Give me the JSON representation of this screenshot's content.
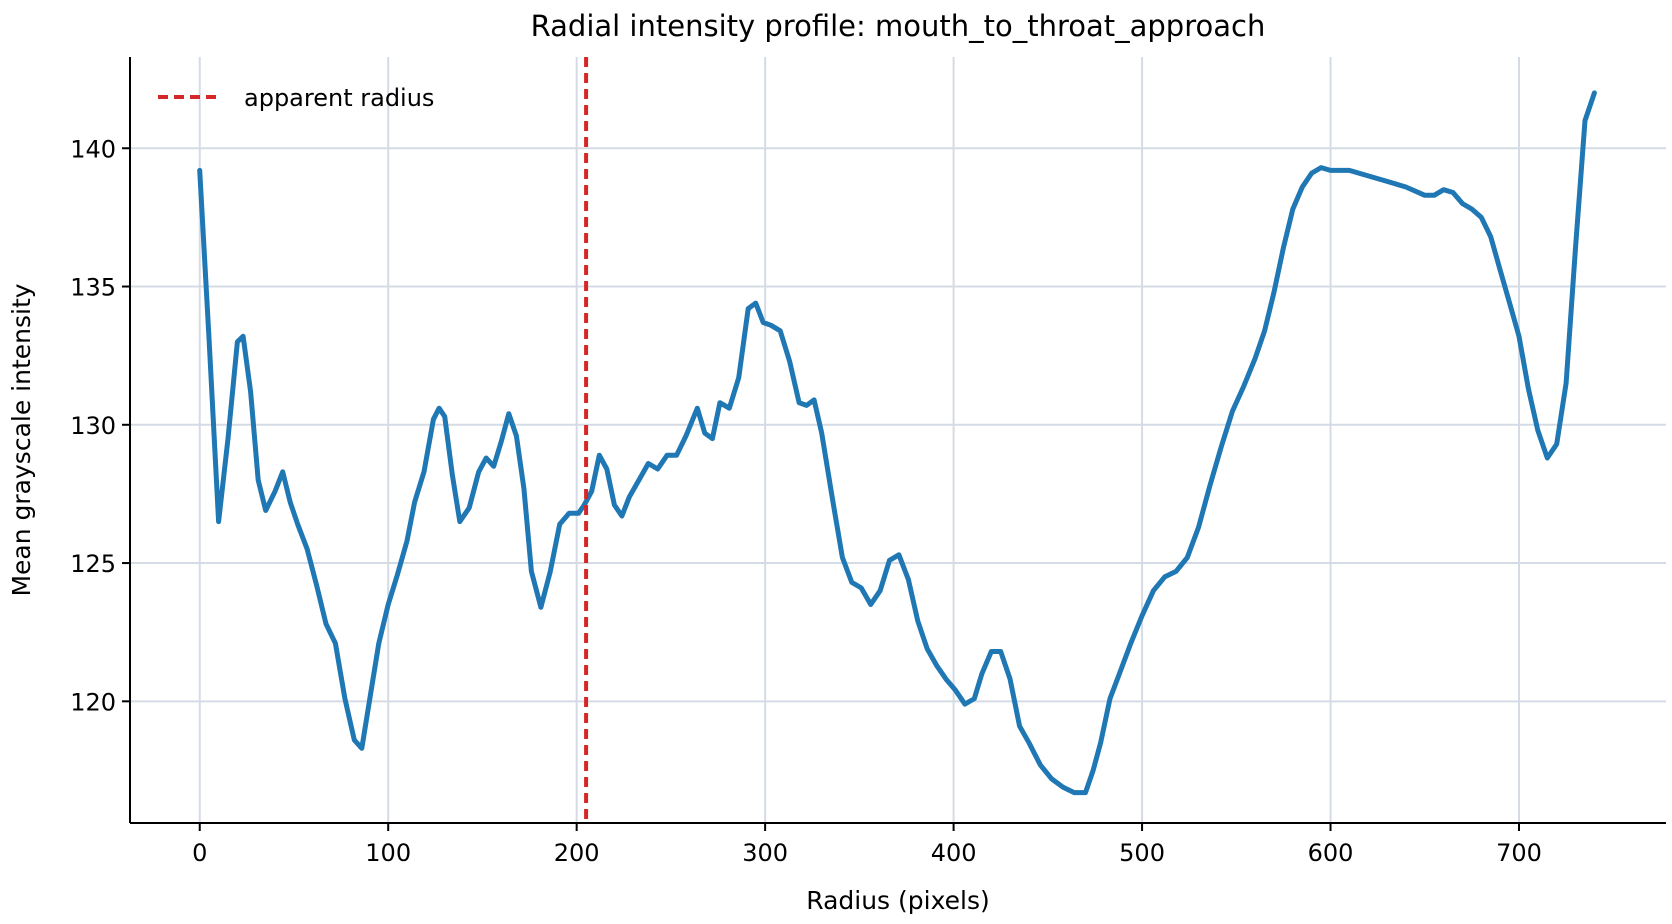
{
  "chart_data": {
    "type": "line",
    "title": "Radial intensity profile: mouth_to_throat_approach",
    "xlabel": "Radius (pixels)",
    "ylabel": "Mean grayscale intensity",
    "xlim": [
      -37,
      778
    ],
    "ylim": [
      115.6,
      143.3
    ],
    "xticks": [
      0,
      100,
      200,
      300,
      400,
      500,
      600,
      700
    ],
    "yticks": [
      120,
      125,
      130,
      135,
      140
    ],
    "grid": true,
    "legend": "top-left",
    "colors": {
      "series": "#1f77b4",
      "marker": "#d62728",
      "grid": "#d5dbe5"
    },
    "series": [
      {
        "name": "",
        "x": [
          0,
          5,
          10,
          15,
          20,
          23,
          27,
          31,
          35,
          40,
          44,
          48,
          52,
          57,
          62,
          67,
          72,
          77,
          82,
          86,
          90,
          95,
          100,
          105,
          110,
          114,
          119,
          124,
          127,
          130,
          134,
          138,
          143,
          148,
          152,
          156,
          160,
          164,
          168,
          172,
          176,
          181,
          186,
          191,
          196,
          201,
          204,
          208,
          212,
          216,
          220,
          224,
          228,
          233,
          238,
          243,
          248,
          253,
          258,
          264,
          268,
          272,
          276,
          281,
          286,
          291,
          295,
          299,
          303,
          308,
          313,
          318,
          322,
          326,
          330,
          336,
          341,
          346,
          351,
          356,
          361,
          366,
          371,
          376,
          381,
          386,
          391,
          396,
          401,
          406,
          411,
          415,
          420,
          425,
          430,
          435,
          440,
          446,
          452,
          458,
          464,
          470,
          474,
          478,
          483,
          488,
          494,
          500,
          506,
          512,
          518,
          524,
          530,
          536,
          542,
          548,
          554,
          560,
          565,
          570,
          575,
          580,
          585,
          590,
          595,
          600,
          610,
          620,
          630,
          640,
          650,
          655,
          660,
          665,
          670,
          675,
          680,
          685,
          690,
          695,
          700,
          705,
          710,
          715,
          720,
          725,
          730,
          735,
          740
        ],
        "values": [
          139.2,
          133.0,
          126.5,
          129.5,
          133.0,
          133.2,
          131.2,
          128.0,
          126.9,
          127.6,
          128.3,
          127.2,
          126.4,
          125.5,
          124.2,
          122.8,
          122.1,
          120.1,
          118.6,
          118.3,
          120.0,
          122.1,
          123.5,
          124.6,
          125.8,
          127.2,
          128.3,
          130.2,
          130.6,
          130.3,
          128.2,
          126.5,
          127.0,
          128.3,
          128.8,
          128.5,
          129.4,
          130.4,
          129.6,
          127.7,
          124.7,
          123.4,
          124.7,
          126.4,
          126.8,
          126.8,
          127.1,
          127.6,
          128.9,
          128.4,
          127.1,
          126.7,
          127.4,
          128.0,
          128.6,
          128.4,
          128.9,
          128.9,
          129.6,
          130.6,
          129.7,
          129.5,
          130.8,
          130.6,
          131.7,
          134.2,
          134.4,
          133.7,
          133.6,
          133.4,
          132.3,
          130.8,
          130.7,
          130.9,
          129.7,
          127.2,
          125.2,
          124.3,
          124.1,
          123.5,
          124.0,
          125.1,
          125.3,
          124.4,
          122.9,
          121.9,
          121.3,
          120.8,
          120.4,
          119.9,
          120.1,
          121.0,
          121.8,
          121.8,
          120.8,
          119.1,
          118.5,
          117.7,
          117.2,
          116.9,
          116.7,
          116.7,
          117.5,
          118.5,
          120.1,
          121.0,
          122.1,
          123.1,
          124.0,
          124.5,
          124.7,
          125.2,
          126.3,
          127.8,
          129.2,
          130.5,
          131.4,
          132.4,
          133.4,
          134.8,
          136.4,
          137.8,
          138.6,
          139.1,
          139.3,
          139.2,
          139.2,
          139.0,
          138.8,
          138.6,
          138.3,
          138.3,
          138.5,
          138.4,
          138.0,
          137.8,
          137.5,
          136.8,
          135.6,
          134.4,
          133.2,
          131.3,
          129.8,
          128.8,
          129.3,
          131.5,
          136.4,
          141.0,
          142.0
        ]
      },
      {
        "name": "apparent radius",
        "type": "vline",
        "x": 205
      }
    ]
  }
}
